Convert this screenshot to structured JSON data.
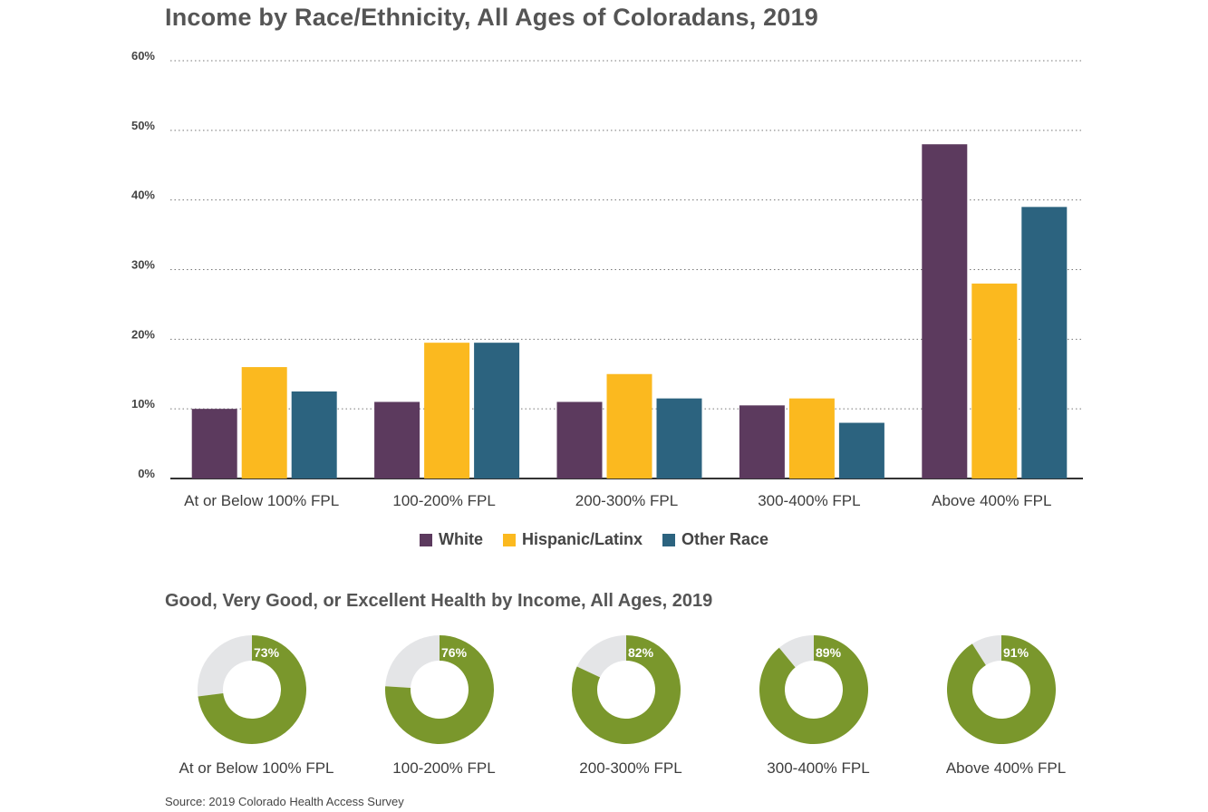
{
  "title": "Income by Race/Ethnicity, All Ages of Coloradans, 2019",
  "chart_data": [
    {
      "type": "bar",
      "title": "Income by Race/Ethnicity, All Ages of Coloradans, 2019",
      "categories": [
        "At or Below 100% FPL",
        "100-200% FPL",
        "200-300% FPL",
        "300-400% FPL",
        "Above 400% FPL"
      ],
      "series": [
        {
          "name": "White",
          "color": "#5c3a5e",
          "values": [
            10,
            11,
            11,
            10.5,
            48
          ]
        },
        {
          "name": "Hispanic/Latinx",
          "color": "#fbb91f",
          "values": [
            16,
            19.5,
            15,
            11.5,
            28
          ]
        },
        {
          "name": "Other Race",
          "color": "#2c637f",
          "values": [
            12.5,
            19.5,
            11.5,
            8,
            39
          ]
        }
      ],
      "yticks": [
        "0%",
        "10%",
        "20%",
        "30%",
        "40%",
        "50%",
        "60%"
      ],
      "ylim": [
        0,
        60
      ],
      "grid": "dotted horizontal",
      "legend": "bottom-center"
    },
    {
      "type": "pie",
      "title": "Good, Very Good, or Excellent Health by Income, All Ages, 2019",
      "categories": [
        "At or Below 100% FPL",
        "100-200% FPL",
        "200-300% FPL",
        "300-400% FPL",
        "Above 400% FPL"
      ],
      "values": [
        73,
        76,
        82,
        89,
        91
      ],
      "labels": [
        "73%",
        "76%",
        "82%",
        "89%",
        "91%"
      ],
      "color": "#7a972c",
      "remainder_color": "#e4e5e7"
    }
  ],
  "legend": [
    {
      "label": "White",
      "color": "#5c3a5e"
    },
    {
      "label": "Hispanic/Latinx",
      "color": "#fbb91f"
    },
    {
      "label": "Other Race",
      "color": "#2c637f"
    }
  ],
  "subtitle": "Good, Very Good, or Excellent Health by Income, All Ages, 2019",
  "source": "Source: 2019 Colorado Health Access Survey"
}
